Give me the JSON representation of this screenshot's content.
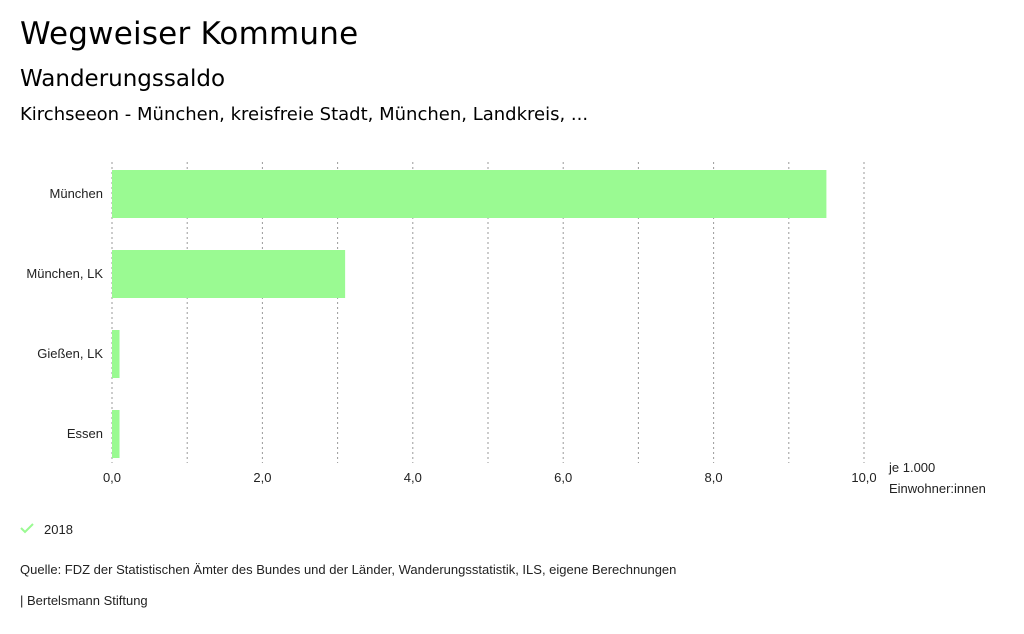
{
  "header": {
    "title": "Wegweiser Kommune",
    "subtitle": "Wanderungssaldo",
    "region": "Kirchseeon - München, kreisfreie Stadt, München, Landkreis, ..."
  },
  "colors": {
    "bar": "#9afa92",
    "grid": "#9a9a9a",
    "legend_check": "#9afa92"
  },
  "chart_data": {
    "type": "bar",
    "orientation": "horizontal",
    "categories": [
      "München",
      "München, LK",
      "Gießen, LK",
      "Essen"
    ],
    "series": [
      {
        "name": "2018",
        "values": [
          9.5,
          3.1,
          0.1,
          0.1
        ]
      }
    ],
    "xlim": [
      0,
      10
    ],
    "xticks": [
      0,
      2,
      4,
      6,
      8,
      10
    ],
    "xtick_labels": [
      "0,0",
      "2,0",
      "4,0",
      "6,0",
      "8,0",
      "10,0"
    ],
    "minor_grid_step": 1,
    "xlabel_line1": "je 1.000",
    "xlabel_line2": "Einwohner:innen",
    "grid": true,
    "legend_position": "bottom-left"
  },
  "legend": {
    "label": "2018",
    "icon": "check-icon"
  },
  "footer": {
    "source": "Quelle: FDZ der Statistischen Ämter des Bundes und der Länder, Wanderungsstatistik, ILS, eigene Berechnungen",
    "credit": "| Bertelsmann Stiftung"
  }
}
